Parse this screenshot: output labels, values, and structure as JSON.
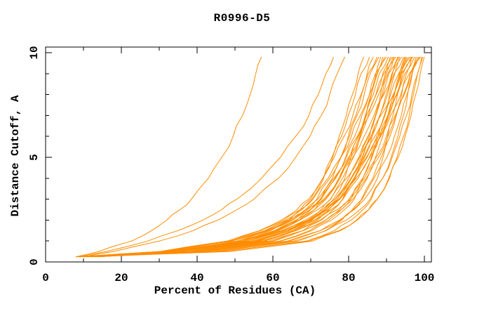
{
  "chart_data": {
    "type": "line",
    "title": "R0996-D5",
    "xlabel": "Percent of Residues (CA)",
    "ylabel": "Distance Cutoff, A",
    "xlim": [
      0,
      100
    ],
    "ylim": [
      0,
      10
    ],
    "grid": false,
    "legend": "none",
    "line_color": "#FF8C00",
    "background_color": "#FFFFFF",
    "x_axis": {
      "major_ticks": [
        0,
        20,
        40,
        60,
        80,
        100
      ],
      "major_tick_labels": [
        "0",
        "20",
        "40",
        "60",
        "80",
        "100"
      ],
      "minor_ticks": [
        10,
        30,
        50,
        70,
        90
      ]
    },
    "y_axis": {
      "major_ticks": [
        0,
        5,
        10
      ],
      "major_tick_labels": [
        "0",
        "5",
        "10"
      ],
      "minor_ticks": [
        1,
        2,
        3,
        4,
        6,
        7,
        8,
        9
      ]
    },
    "y_levels": [
      0.25,
      0.5,
      1,
      1.5,
      2,
      2.5,
      3,
      4,
      5,
      6,
      7,
      8,
      9,
      9.8
    ],
    "series": [
      {
        "x": [
          8,
          14,
          22.7,
          28,
          32,
          35.5,
          38.5,
          43,
          46.5,
          49.5,
          52,
          54,
          55.5,
          57
        ]
      },
      {
        "x": [
          9,
          16,
          27,
          35,
          41.5,
          46.5,
          50.5,
          57,
          62,
          66,
          69.5,
          72,
          74,
          76
        ]
      },
      {
        "x": [
          10,
          18,
          30,
          39,
          45.5,
          50.5,
          55,
          61.5,
          66,
          69.8,
          72.8,
          75,
          77,
          79
        ]
      },
      {
        "x": [
          8,
          33.8,
          51.3,
          58.9,
          64.2,
          67.7,
          70.3,
          73.4,
          75.6,
          77.5,
          79.4,
          81.0,
          82.5,
          84
        ]
      },
      {
        "x": [
          11,
          33.4,
          50.5,
          58.3,
          63.5,
          67.2,
          69.9,
          73.2,
          75.8,
          78.1,
          79.9,
          81.8,
          83.3,
          85.5
        ]
      },
      {
        "x": [
          9,
          35.4,
          53.2,
          60.9,
          66.4,
          69.8,
          72.6,
          75.7,
          78.0,
          79.9,
          81.9,
          83.4,
          84.9,
          86.5
        ]
      },
      {
        "x": [
          12,
          31.6,
          48.2,
          56.5,
          62.2,
          66.4,
          69.4,
          73.2,
          76.2,
          78.8,
          81.1,
          83.3,
          85.2,
          87.5
        ]
      },
      {
        "x": [
          10,
          33.4,
          51.3,
          59.5,
          65.0,
          68.9,
          71.6,
          75.1,
          77.9,
          80.2,
          82.2,
          84.1,
          85.7,
          88
        ]
      },
      {
        "x": [
          8,
          38.6,
          57.9,
          65.6,
          70.4,
          73.6,
          76.0,
          79.0,
          81.3,
          83.0,
          84.6,
          85.9,
          87.2,
          88.5
        ]
      },
      {
        "x": [
          13,
          38.8,
          56.3,
          63.9,
          69.2,
          72.7,
          75.3,
          78.4,
          80.6,
          82.5,
          84.4,
          86.0,
          87.5,
          89
        ]
      },
      {
        "x": [
          9,
          30.1,
          47.9,
          56.8,
          62.9,
          67.3,
          70.6,
          74.6,
          77.9,
          80.7,
          83.1,
          85.5,
          87.6,
          90
        ]
      },
      {
        "x": [
          11,
          34.9,
          53.1,
          61.5,
          67.1,
          71.0,
          73.8,
          77.4,
          80.2,
          82.6,
          84.5,
          86.5,
          88.1,
          90.5
        ]
      },
      {
        "x": [
          10,
          40.8,
          60.2,
          67.9,
          72.8,
          76.0,
          78.4,
          81.4,
          83.7,
          85.5,
          87.1,
          88.4,
          89.7,
          91
        ]
      },
      {
        "x": [
          8,
          33.1,
          52.3,
          61.0,
          66.9,
          71.0,
          74.0,
          77.7,
          80.6,
          83.2,
          85.2,
          87.3,
          89.0,
          91.5
        ]
      },
      {
        "x": [
          12,
          39.2,
          57.6,
          65.6,
          71.2,
          74.8,
          77.6,
          80.8,
          83.2,
          85.2,
          87.2,
          88.8,
          90.4,
          92
        ]
      },
      {
        "x": [
          9,
          30.7,
          49.1,
          58.3,
          64.5,
          69.1,
          72.5,
          76.6,
          80.0,
          82.9,
          85.4,
          87.9,
          90.0,
          92.5
        ]
      },
      {
        "x": [
          14,
          37.7,
          55.9,
          64.2,
          69.7,
          73.6,
          76.4,
          80.0,
          82.7,
          85.1,
          87.1,
          89.1,
          90.6,
          93
        ]
      },
      {
        "x": [
          10,
          41.7,
          61.8,
          69.7,
          74.7,
          78.1,
          80.6,
          83.7,
          86.0,
          87.8,
          89.5,
          90.8,
          92.2,
          93.5
        ]
      },
      {
        "x": [
          8,
          30.4,
          49.3,
          58.7,
          65.2,
          69.9,
          73.4,
          77.7,
          81.1,
          84.1,
          86.7,
          89.3,
          91.4,
          94
        ]
      },
      {
        "x": [
          11,
          36.1,
          55.3,
          64.0,
          69.9,
          74.0,
          77.0,
          80.7,
          83.6,
          86.2,
          88.2,
          90.3,
          92.0,
          94.5
        ]
      },
      {
        "x": [
          9,
          45.1,
          66.6,
          73.9,
          78.2,
          81.2,
          83.4,
          86.4,
          88.6,
          90.3,
          91.7,
          92.9,
          94.0,
          95
        ]
      },
      {
        "x": [
          13,
          41.0,
          59.9,
          68.1,
          73.9,
          77.6,
          80.5,
          83.8,
          86.2,
          88.3,
          90.4,
          92.0,
          93.7,
          95.3
        ]
      },
      {
        "x": [
          10,
          32.3,
          51.2,
          60.6,
          67.1,
          71.8,
          75.2,
          79.5,
          82.9,
          85.9,
          88.5,
          91.1,
          93.2,
          95.8
        ]
      },
      {
        "x": [
          8,
          34.5,
          54.7,
          64.0,
          70.2,
          74.6,
          77.7,
          81.6,
          84.7,
          87.4,
          89.6,
          91.8,
          93.6,
          96.2
        ]
      },
      {
        "x": [
          12,
          44.2,
          64.5,
          72.6,
          77.6,
          81.0,
          83.6,
          86.7,
          89.1,
          90.9,
          92.6,
          94.0,
          95.3,
          96.7
        ]
      },
      {
        "x": [
          9,
          35.4,
          55.6,
          64.9,
          71.0,
          75.4,
          78.5,
          82.5,
          85.6,
          88.2,
          90.4,
          92.6,
          94.4,
          97
        ]
      },
      {
        "x": [
          14,
          35.7,
          54.0,
          63.2,
          69.5,
          74.0,
          77.4,
          81.6,
          84.9,
          87.8,
          90.3,
          92.8,
          94.9,
          97.4
        ]
      },
      {
        "x": [
          10,
          46.9,
          68.8,
          76.3,
          80.7,
          83.8,
          86.0,
          89.0,
          91.2,
          93.0,
          94.5,
          95.6,
          96.7,
          97.8
        ]
      },
      {
        "x": [
          8,
          42.3,
          63.9,
          72.5,
          77.9,
          81.5,
          84.2,
          87.6,
          90.1,
          92.1,
          93.9,
          95.4,
          96.8,
          98.2
        ]
      },
      {
        "x": [
          11,
          33.8,
          53.0,
          62.7,
          69.3,
          74.1,
          77.6,
          82.0,
          85.5,
          88.5,
          91.1,
          93.8,
          96.0,
          98.6
        ]
      },
      {
        "x": [
          9,
          36.0,
          56.7,
          66.2,
          72.5,
          77.0,
          80.1,
          84.2,
          87.3,
          90.0,
          92.3,
          94.5,
          96.3,
          99
        ]
      },
      {
        "x": [
          12,
          48.7,
          70.5,
          77.9,
          82.3,
          85.3,
          87.5,
          90.6,
          92.8,
          94.5,
          96.0,
          97.1,
          98.2,
          99.3
        ]
      },
      {
        "x": [
          10,
          44.0,
          65.6,
          74.1,
          79.4,
          83.0,
          85.7,
          89.0,
          91.5,
          93.5,
          95.3,
          96.7,
          98.2,
          99.6
        ]
      },
      {
        "x": [
          8,
          46.6,
          69.6,
          77.5,
          82.1,
          85.3,
          87.6,
          90.8,
          93.1,
          94.9,
          96.5,
          97.7,
          98.9,
          100
        ]
      },
      {
        "x": [
          10,
          33.9,
          52.1,
          60.5,
          66.1,
          70.0,
          72.8,
          76.4,
          79.2,
          81.6,
          83.5,
          85.5,
          87.1,
          89.5
        ]
      },
      {
        "x": [
          11,
          38.9,
          57.9,
          66.1,
          71.8,
          75.5,
          78.4,
          81.7,
          84.2,
          86.2,
          88.3,
          89.9,
          91.6,
          93.2
        ]
      },
      {
        "x": [
          13,
          34.7,
          53.1,
          62.3,
          68.5,
          73.1,
          76.5,
          80.6,
          84.0,
          86.9,
          89.4,
          91.9,
          94.0,
          96.5
        ]
      },
      {
        "x": [
          9,
          41.6,
          62.2,
          70.3,
          75.5,
          78.9,
          81.5,
          84.7,
          87.1,
          89.0,
          90.7,
          92.1,
          93.4,
          94.8
        ]
      },
      {
        "x": [
          14,
          39.5,
          59.0,
          67.9,
          73.9,
          78.1,
          81.1,
          84.9,
          87.9,
          90.4,
          92.5,
          94.7,
          96.3,
          98.9
        ]
      },
      {
        "x": [
          9,
          30.5,
          48.7,
          57.9,
          64.1,
          68.6,
          71.9,
          76.1,
          79.4,
          82.3,
          84.7,
          87.2,
          89.3,
          91.8
        ]
      }
    ]
  }
}
